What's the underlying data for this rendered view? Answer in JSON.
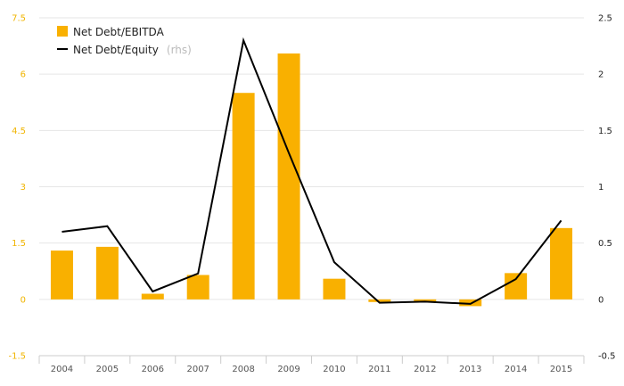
{
  "chart_data": {
    "type": "bar",
    "categories": [
      "2004",
      "2005",
      "2006",
      "2007",
      "2008",
      "2009",
      "2010",
      "2011",
      "2012",
      "2013",
      "2014",
      "2015"
    ],
    "series": [
      {
        "name": "Net Debt/EBITDA",
        "type": "bar",
        "axis": "left",
        "color": "#f9b000",
        "values": [
          1.3,
          1.4,
          0.15,
          0.65,
          5.5,
          6.55,
          0.55,
          -0.07,
          -0.05,
          -0.18,
          0.7,
          1.9
        ]
      },
      {
        "name": "Net Debt/Equity",
        "name_suffix": "(rhs)",
        "type": "line",
        "axis": "right",
        "color": "#000000",
        "values": [
          0.6,
          0.65,
          0.07,
          0.23,
          2.3,
          1.3,
          0.33,
          -0.03,
          -0.02,
          -0.04,
          0.18,
          0.7
        ]
      }
    ],
    "y_left": {
      "min": -1.5,
      "max": 7.5,
      "ticks": [
        "7.5",
        "6",
        "4.5",
        "3",
        "1.5",
        "0",
        "-1.5"
      ],
      "color": "#f0b400"
    },
    "y_right": {
      "min": -0.5,
      "max": 2.5,
      "ticks": [
        "2.5",
        "2",
        "1.5",
        "1",
        "0.5",
        "0",
        "-0.5"
      ],
      "color": "#222222"
    },
    "grid": true,
    "legend_position": "top-left"
  }
}
